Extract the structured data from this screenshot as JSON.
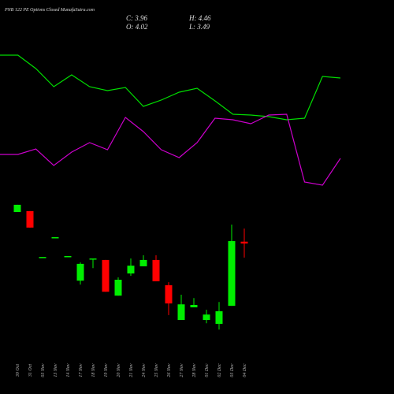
{
  "chart_data": [
    {
      "type": "candlestick",
      "title": "PNB 122 PE Options Closed MunafaSutra.com",
      "readout": [
        "C: 3.96",
        "H: 4.46",
        "O: 4.02",
        "L: 3.49"
      ],
      "up_color": "#00ee00",
      "down_color": "#ff0000",
      "categories": [
        "30 Oct",
        "31 Oct",
        "03 Nov",
        "13 Nov",
        "14 Nov",
        "17 Nov",
        "18 Nov",
        "19 Nov",
        "20 Nov",
        "21 Nov",
        "24 Nov",
        "25 Nov",
        "26 Nov",
        "27 Nov",
        "28 Nov",
        "01 Dec",
        "02 Dec",
        "03 Dec",
        "04 Dec"
      ],
      "open": [
        5.01,
        5.04,
        3.51,
        4.17,
        3.54,
        2.72,
        3.43,
        3.41,
        2.22,
        2.96,
        3.2,
        3.41,
        2.57,
        1.41,
        1.83,
        1.41,
        1.28,
        1.88,
        4.02
      ],
      "high": [
        5.25,
        5.04,
        3.51,
        4.17,
        3.54,
        3.33,
        3.46,
        3.41,
        2.83,
        3.46,
        3.57,
        3.57,
        2.67,
        2.25,
        2.14,
        1.75,
        2.01,
        4.59,
        4.46
      ],
      "low": [
        5.01,
        4.49,
        3.51,
        4.17,
        3.54,
        2.59,
        3.14,
        2.35,
        2.22,
        2.88,
        3.2,
        2.7,
        1.57,
        1.41,
        1.83,
        1.3,
        1.09,
        1.88,
        3.49
      ],
      "close": [
        5.25,
        4.49,
        3.51,
        4.17,
        3.54,
        3.28,
        3.46,
        2.35,
        2.75,
        3.22,
        3.41,
        2.7,
        1.96,
        1.93,
        1.91,
        1.59,
        1.7,
        4.04,
        3.96
      ],
      "ylim": [
        0.78,
        5.51
      ]
    },
    {
      "type": "line",
      "ylim": [
        0,
        250
      ],
      "series": [
        {
          "color": "#00dd00",
          "values": [
            180,
            180,
            163,
            140,
            155,
            140,
            135,
            139,
            115,
            123,
            133,
            138,
            122,
            105,
            104,
            102,
            98,
            100,
            153,
            151
          ]
        },
        {
          "color": "#cc00cc",
          "values": [
            54,
            54,
            61,
            40,
            57,
            69,
            60,
            101,
            83,
            60,
            50,
            69,
            100,
            98,
            93,
            104,
            105,
            19,
            15,
            49
          ]
        }
      ]
    }
  ]
}
